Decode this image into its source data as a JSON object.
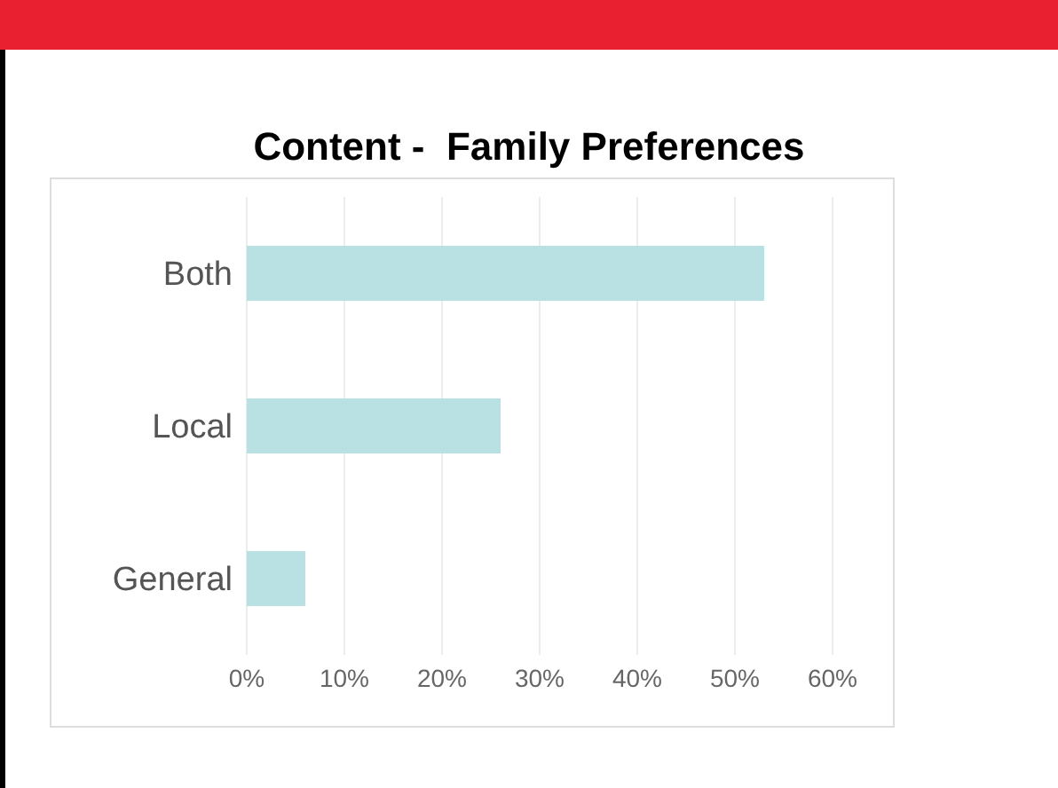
{
  "chart_data": {
    "type": "bar",
    "orientation": "horizontal",
    "title": "Content -  Family Preferences",
    "categories": [
      "Both",
      "Local",
      "General"
    ],
    "values": [
      53,
      26,
      6
    ],
    "color": "#b9e0e3",
    "xlim": [
      0,
      60
    ],
    "xticks": [
      {
        "value": 0,
        "label": "0%"
      },
      {
        "value": 10,
        "label": "10%"
      },
      {
        "value": 20,
        "label": "20%"
      },
      {
        "value": 30,
        "label": "30%"
      },
      {
        "value": 40,
        "label": "40%"
      },
      {
        "value": 50,
        "label": "50%"
      },
      {
        "value": 60,
        "label": "60%"
      }
    ],
    "grid": "x"
  }
}
